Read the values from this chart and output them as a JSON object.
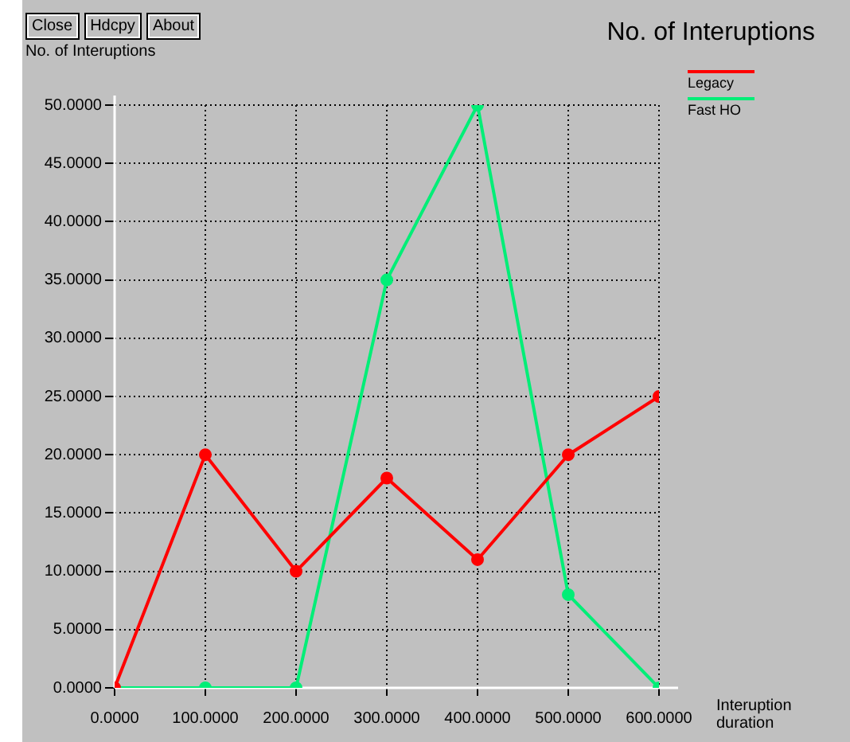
{
  "chart_data": {
    "type": "line",
    "title": "No. of Interuptions",
    "ylabel": "No. of Interuptions",
    "xlabel": "Interuption duration",
    "annotations": [
      "Close",
      "Hdcpy",
      "About"
    ],
    "x": [
      0,
      100,
      200,
      300,
      400,
      500,
      600
    ],
    "series": [
      {
        "name": "Legacy",
        "color": "#ff0000",
        "values": [
          0,
          20,
          10,
          18,
          11,
          20,
          25
        ]
      },
      {
        "name": "Fast HO",
        "color": "#00ee77",
        "values": [
          0,
          0,
          0,
          35,
          50,
          8,
          0
        ]
      }
    ],
    "xlim": [
      0,
      600
    ],
    "ylim": [
      0,
      50
    ],
    "xticks": [
      {
        "value": 0,
        "label": "0.0000"
      },
      {
        "value": 100,
        "label": "100.0000"
      },
      {
        "value": 200,
        "label": "200.0000"
      },
      {
        "value": 300,
        "label": "300.0000"
      },
      {
        "value": 400,
        "label": "400.0000"
      },
      {
        "value": 500,
        "label": "500.0000"
      },
      {
        "value": 600,
        "label": "600.0000"
      }
    ],
    "yticks": [
      {
        "value": 0,
        "label": "0.0000"
      },
      {
        "value": 5,
        "label": "5.0000"
      },
      {
        "value": 10,
        "label": "10.0000"
      },
      {
        "value": 15,
        "label": "15.0000"
      },
      {
        "value": 20,
        "label": "20.0000"
      },
      {
        "value": 25,
        "label": "25.0000"
      },
      {
        "value": 30,
        "label": "30.0000"
      },
      {
        "value": 35,
        "label": "35.0000"
      },
      {
        "value": 40,
        "label": "40.0000"
      },
      {
        "value": 45,
        "label": "45.0000"
      },
      {
        "value": 50,
        "label": "50.0000"
      }
    ],
    "grid": true,
    "legend": "top right",
    "marker": "circle",
    "line_style": "solid"
  }
}
